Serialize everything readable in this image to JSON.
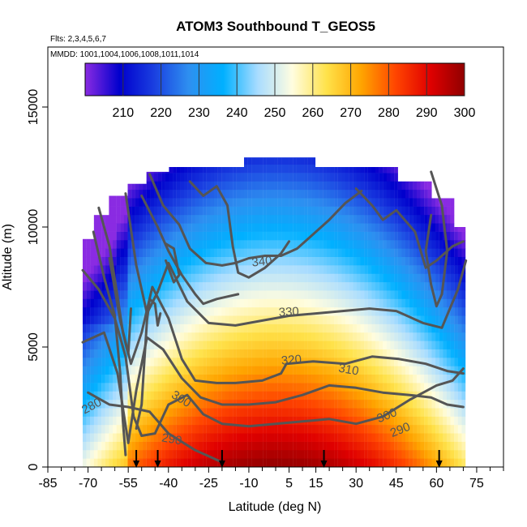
{
  "chart_data": {
    "type": "heatmap",
    "title": "ATOM3 Southbound T_GEOS5",
    "subtitle_lines": [
      "Flts: 2,3,4,5,6,7",
      "MMDD: 1001,1004,1006,1008,1011,1014"
    ],
    "xlabel": "Latitude (deg N)",
    "ylabel": "Altitude (m)",
    "xlim": [
      -85,
      85
    ],
    "ylim": [
      0,
      17500
    ],
    "x_ticks": [
      -85,
      -70,
      -55,
      -40,
      -25,
      -10,
      5,
      15,
      30,
      45,
      60,
      75
    ],
    "x_minor_ticks": [
      -80,
      -75,
      -65,
      -60,
      -50,
      -45,
      -35,
      -30,
      -20,
      -15,
      -5,
      0,
      10,
      20,
      25,
      35,
      40,
      50,
      55,
      65,
      70,
      80,
      85
    ],
    "y_ticks": [
      0,
      5000,
      10000,
      15000
    ],
    "colorbar": {
      "range": [
        200,
        300
      ],
      "ticks": [
        210,
        220,
        230,
        240,
        250,
        260,
        270,
        280,
        290,
        300
      ],
      "colors": [
        "#8a2be2",
        "#0000cd",
        "#1a3fe0",
        "#2e8ff0",
        "#00b0ff",
        "#a8dcff",
        "#fffde0",
        "#ffe24a",
        "#ffa500",
        "#ff4500",
        "#e00000",
        "#900000"
      ]
    },
    "contour_labels": [
      "280",
      "290",
      "300",
      "310",
      "320",
      "330",
      "340",
      "300",
      "290"
    ],
    "arrow_latitudes": [
      -52,
      -44,
      -20,
      18,
      61
    ]
  }
}
